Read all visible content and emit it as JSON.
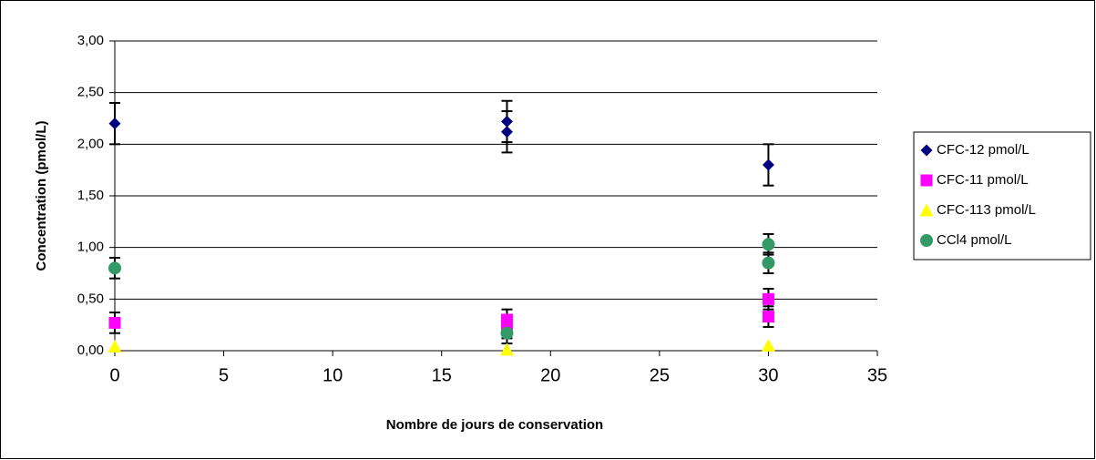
{
  "chart_data": {
    "type": "scatter",
    "xlabel": "Nombre de jours de conservation",
    "ylabel": "Concentration (pmol/L)",
    "xlim": [
      0,
      35
    ],
    "xticks": [
      0,
      5,
      10,
      15,
      20,
      25,
      30,
      35
    ],
    "ylim": [
      0,
      3
    ],
    "yticks": [
      {
        "value": 0,
        "label": "0,00"
      },
      {
        "value": 0.5,
        "label": "0,50"
      },
      {
        "value": 1,
        "label": "1,00"
      },
      {
        "value": 1.5,
        "label": "1,50"
      },
      {
        "value": 2,
        "label": "2,00"
      },
      {
        "value": 2.5,
        "label": "2,50"
      },
      {
        "value": 3,
        "label": "3,00"
      }
    ],
    "grid": true,
    "legend": "right",
    "series": [
      {
        "name": "CFC-12 pmol/L",
        "color": "#000080",
        "marker": "diamond",
        "x": [
          0,
          18,
          18,
          30
        ],
        "values": [
          2.2,
          2.22,
          2.12,
          1.8
        ],
        "errors": [
          0.2,
          0.2,
          0.2,
          0.2
        ]
      },
      {
        "name": "CFC-11 pmol/L",
        "color": "#FF00FF",
        "marker": "square",
        "x": [
          0,
          18,
          18,
          30,
          30
        ],
        "values": [
          0.27,
          0.3,
          0.22,
          0.5,
          0.33
        ],
        "errors": [
          0.1,
          0.1,
          0.1,
          0.1,
          0.1
        ]
      },
      {
        "name": "CFC-113 pmol/L",
        "color": "#FFFF00",
        "marker": "triangle",
        "x": [
          0,
          18,
          30
        ],
        "values": [
          0.04,
          0.01,
          0.05
        ]
      },
      {
        "name": "CCl4 pmol/L",
        "color": "#339966",
        "marker": "circle",
        "x": [
          0,
          18,
          30,
          30
        ],
        "values": [
          0.8,
          0.17,
          1.03,
          0.85
        ],
        "errors": [
          0.1,
          0.1,
          0.1,
          0.1
        ]
      }
    ]
  }
}
